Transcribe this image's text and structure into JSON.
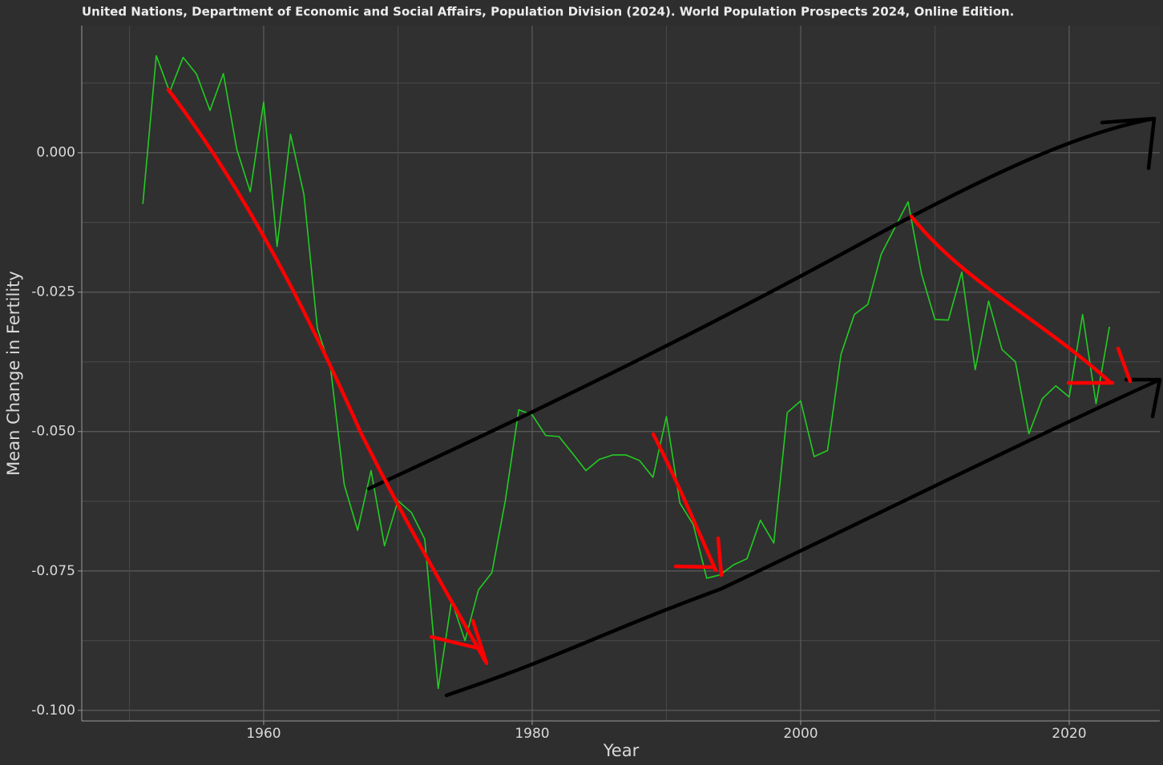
{
  "chart_data": {
    "type": "line",
    "title": "United Nations, Department of Economic and Social Affairs, Population Division (2024). World Population Prospects 2024, Online Edition.",
    "x_label": "Year",
    "y_label": "Mean Change in Fertility",
    "x": [
      1951,
      1952,
      1953,
      1954,
      1955,
      1956,
      1957,
      1958,
      1959,
      1960,
      1961,
      1962,
      1963,
      1964,
      1965,
      1966,
      1967,
      1968,
      1969,
      1970,
      1971,
      1972,
      1973,
      1974,
      1975,
      1976,
      1977,
      1978,
      1979,
      1980,
      1981,
      1982,
      1983,
      1984,
      1985,
      1986,
      1987,
      1988,
      1989,
      1990,
      1991,
      1992,
      1993,
      1994,
      1995,
      1996,
      1997,
      1998,
      1999,
      2000,
      2001,
      2002,
      2003,
      2004,
      2005,
      2006,
      2007,
      2008,
      2009,
      2010,
      2011,
      2012,
      2013,
      2014,
      2015,
      2016,
      2017,
      2018,
      2019,
      2020,
      2021,
      2022,
      2023
    ],
    "values": [
      -0.0092,
      0.0174,
      0.0109,
      0.0171,
      0.0141,
      0.0076,
      0.0142,
      0.0006,
      -0.007,
      0.0091,
      -0.0168,
      0.0033,
      -0.0075,
      -0.0315,
      -0.0389,
      -0.0595,
      -0.0677,
      -0.057,
      -0.0705,
      -0.0624,
      -0.0645,
      -0.0693,
      -0.0961,
      -0.0803,
      -0.0875,
      -0.0784,
      -0.0753,
      -0.0624,
      -0.0461,
      -0.047,
      -0.0507,
      -0.0509,
      -0.0539,
      -0.057,
      -0.055,
      -0.0542,
      -0.0542,
      -0.0552,
      -0.0582,
      -0.0473,
      -0.0628,
      -0.0667,
      -0.0763,
      -0.0757,
      -0.0739,
      -0.0728,
      -0.0659,
      -0.07,
      -0.0466,
      -0.0445,
      -0.0545,
      -0.0534,
      -0.0362,
      -0.029,
      -0.0272,
      -0.0182,
      -0.0135,
      -0.0088,
      -0.0217,
      -0.0299,
      -0.03,
      -0.0214,
      -0.0389,
      -0.0266,
      -0.0353,
      -0.0375,
      -0.0504,
      -0.0441,
      -0.0418,
      -0.0438,
      -0.029,
      -0.045,
      -0.0312
    ],
    "color": "#22cc22",
    "xlim": [
      1946.45,
      2026.75
    ],
    "xticks": [
      1960,
      1980,
      2000,
      2020
    ],
    "ylim": [
      -0.1019,
      0.0228
    ],
    "yticks": [
      {
        "value": 0,
        "label": "0.000"
      },
      {
        "value": -0.025,
        "label": "-0.025"
      },
      {
        "value": -0.05,
        "label": "-0.050"
      },
      {
        "value": -0.075,
        "label": "-0.075"
      },
      {
        "value": -0.1,
        "label": "-0.100"
      }
    ],
    "grid": true
  }
}
